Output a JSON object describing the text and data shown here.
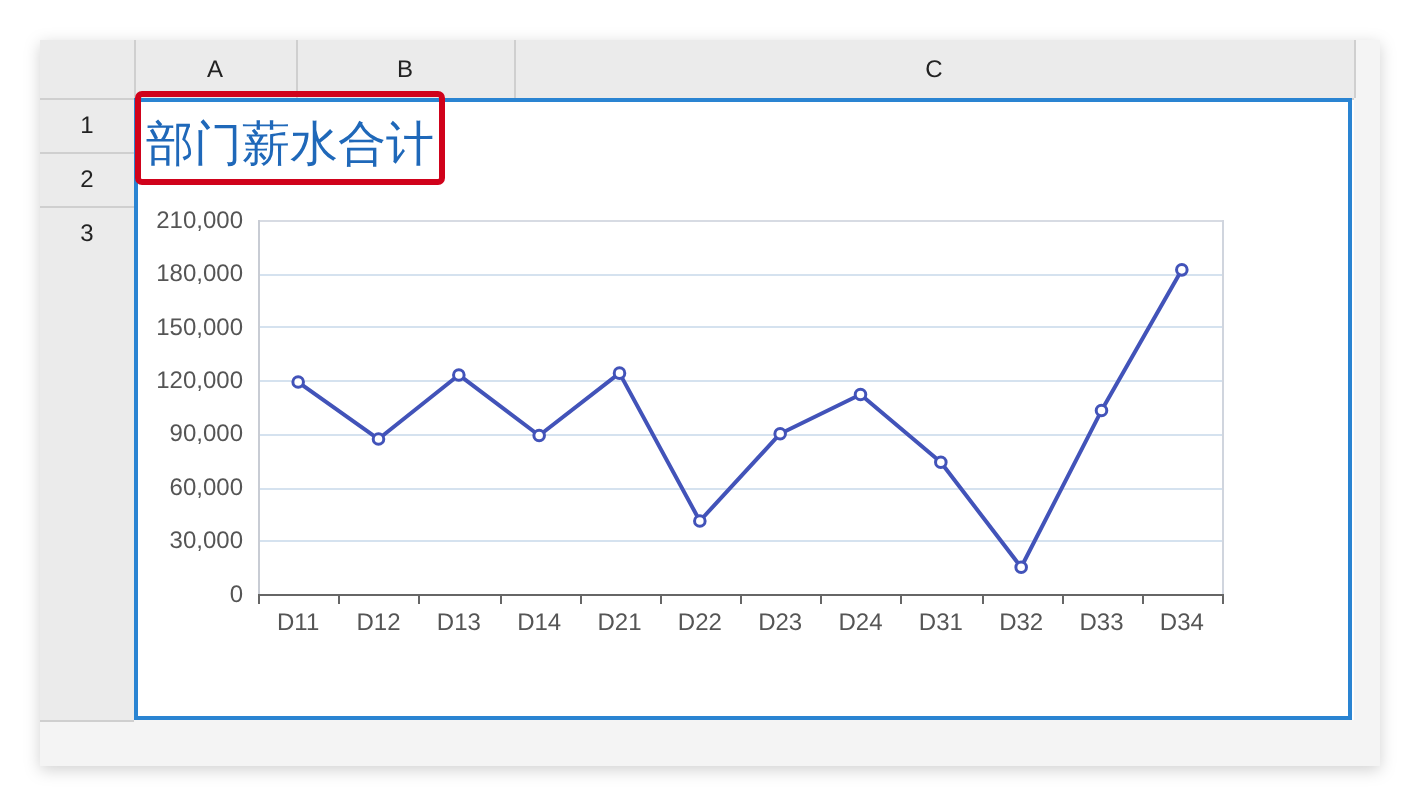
{
  "chart_data": {
    "type": "line",
    "title": "部门薪水合计",
    "categories": [
      "D11",
      "D12",
      "D13",
      "D14",
      "D21",
      "D22",
      "D23",
      "D24",
      "D31",
      "D32",
      "D33",
      "D34"
    ],
    "series": [
      {
        "color": "#4253b9",
        "values": [
          119000,
          87000,
          123000,
          89000,
          124000,
          41000,
          90000,
          112000,
          74000,
          15000,
          103000,
          182000
        ]
      }
    ],
    "ylim": [
      0,
      210000
    ],
    "yticks": [
      0,
      {
        "value": 30000,
        "label": "30,000"
      },
      {
        "value": 60000,
        "label": "60,000"
      },
      {
        "value": 90000,
        "label": "90,000"
      },
      {
        "value": 120000,
        "label": "120,000"
      },
      {
        "value": 150000,
        "label": "150,000"
      },
      {
        "value": 180000,
        "label": "180,000"
      },
      {
        "value": 210000,
        "label": "210,000"
      }
    ],
    "grid": "y",
    "marker": "circle",
    "line_style": "solid",
    "annotations": [
      "A",
      "B",
      "C",
      "1",
      "2",
      "3"
    ]
  }
}
